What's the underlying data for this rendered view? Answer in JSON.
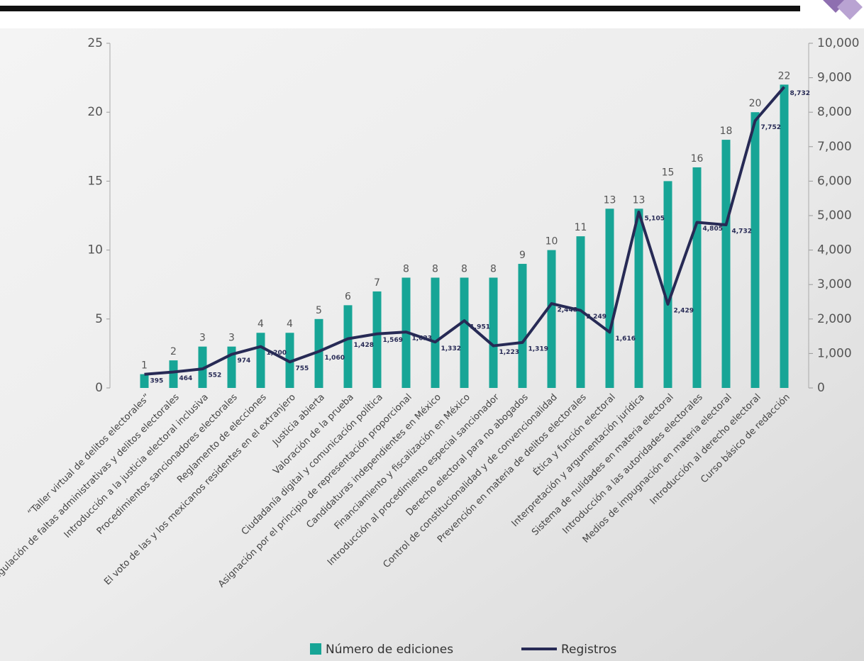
{
  "chart_data": {
    "type": "combo",
    "categories": [
      "“Taller virtual de delitos electorales”",
      "Regulación de faltas administrativas y delitos electorales",
      "Introducción a la justicia electoral inclusiva",
      "Procedimientos sancionadores electorales",
      "Reglamento de elecciones",
      "El voto de las y los mexicanos residentes en el extranjero",
      "Justicia abierta",
      "Valoración de la prueba",
      "Ciudadanía digital y comunicación política",
      "Asignación por el principio de representación proporcional",
      "Candidaturas independientes en México",
      "Financiamiento y fiscalización en México",
      "Introducción al procedimiento especial sancionador",
      "Derecho electoral para no abogados",
      "Control de constitucionalidad y de convencionalidad",
      "Prevención en materia de delitos electorales",
      "Ética y función electoral",
      "Interpretación y argumentación jurídica",
      "Sistema de nulidades en materia electoral",
      "Introducción a las autoridades electorales",
      "Medios de impugnación en materia electoral",
      "Introducción al derecho electoral",
      "Curso básico de redacción"
    ],
    "series": [
      {
        "name": "Número de ediciones",
        "type": "bar",
        "color": "#17a596",
        "values": [
          1,
          2,
          3,
          3,
          4,
          4,
          5,
          6,
          7,
          8,
          8,
          8,
          8,
          9,
          10,
          11,
          13,
          13,
          15,
          16,
          18,
          20,
          22
        ]
      },
      {
        "name": "Registros",
        "type": "line",
        "axis": "y2",
        "color": "#272a55",
        "values": [
          395,
          464,
          552,
          974,
          1200,
          755,
          1060,
          1428,
          1569,
          1623,
          1332,
          1951,
          1223,
          1319,
          2448,
          2249,
          1616,
          5105,
          2429,
          4805,
          4732,
          7752,
          8732
        ],
        "value_labels": [
          "395",
          "464",
          "552",
          "974",
          "1,200",
          "755",
          "1,060",
          "1,428",
          "1,569",
          "1,623",
          "1,332",
          "1,951",
          "1,223",
          "1,319",
          "2,448",
          "2,249",
          "1,616",
          "5,105",
          "2,429",
          "4,805",
          "4,732",
          "7,752",
          "8,732"
        ]
      }
    ],
    "ylim": [
      0,
      25
    ],
    "yticks": [
      0,
      5,
      10,
      15,
      20,
      25
    ],
    "y2lim": [
      0,
      10000
    ],
    "y2ticks": [
      0,
      {
        "value": 1000,
        "label": "1,000"
      },
      {
        "value": 2000,
        "label": "2,000"
      },
      {
        "value": 3000,
        "label": "3,000"
      },
      {
        "value": 4000,
        "label": "4,000"
      },
      {
        "value": 5000,
        "label": "5,000"
      },
      {
        "value": 6000,
        "label": "6,000"
      },
      {
        "value": 7000,
        "label": "7,000"
      },
      {
        "value": 8000,
        "label": "8,000"
      },
      {
        "value": 9000,
        "label": "9,000"
      },
      {
        "value": 10000,
        "label": "10,000"
      }
    ],
    "legend": "bottom"
  }
}
